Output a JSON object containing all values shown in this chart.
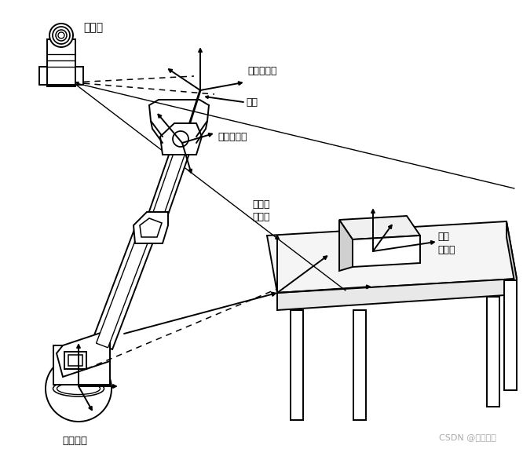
{
  "bg_color": "#ffffff",
  "lc": "#000000",
  "figsize": [
    6.66,
    5.77
  ],
  "dpi": 100,
  "watermark": "CSDN @躯躯我啊",
  "labels": {
    "camera": "摄像机",
    "tool_frame": "工具坐标系",
    "pin_axis": "销轴",
    "wrist_frame": "腕部坐标系",
    "workstation_frame": "工作台\n坐标系",
    "target_frame": "目标\n坐标系",
    "base_frame": "基坐标系"
  },
  "colors": {
    "table_top": "#f5f5f5",
    "table_side": "#d8d8d8",
    "table_front": "#e8e8e8",
    "box_top": "#f0f0f0",
    "box_side": "#d0d0d0"
  }
}
